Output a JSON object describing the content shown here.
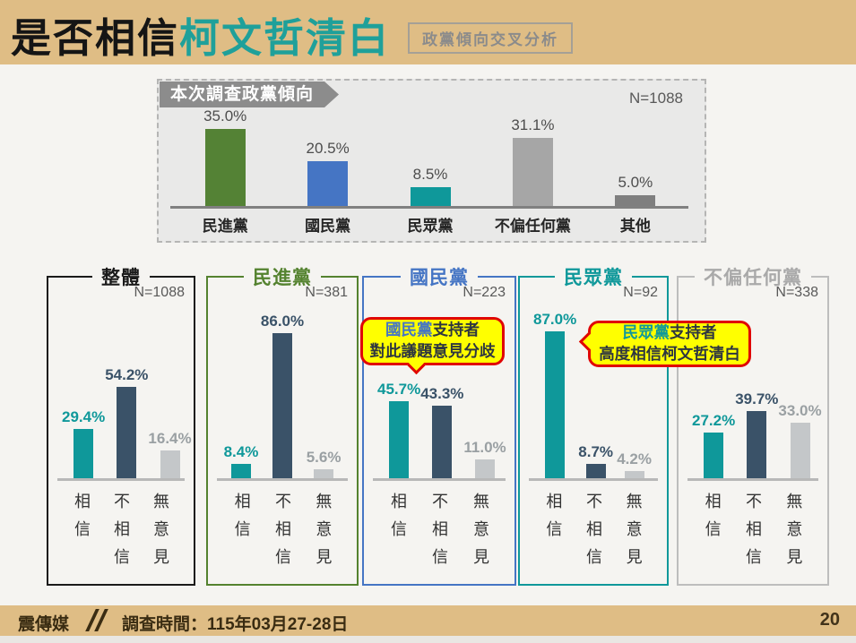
{
  "header": {
    "title_prefix": "是否相信",
    "title_highlight": "柯文哲清白",
    "title_highlight_color": "#1fa09a",
    "badge": "政黨傾向交叉分析"
  },
  "footer": {
    "brand": "震傳媒",
    "survey_time": "調查時間：115年03月27-28日",
    "page_number": "20"
  },
  "theme": {
    "band_tan": "#dfbd85",
    "content_bg": "#f5f4f1",
    "chart_bg": "#e9e9e8",
    "banner_gray": "#8c8c8c",
    "callout_yellow": "#ffff00",
    "callout_red": "#e00505"
  },
  "series_colors": {
    "bars": [
      "#0f989a",
      "#3a5268",
      "#c4c7c9"
    ],
    "labels": [
      "#0f989a",
      "#3a5268",
      "#9aa0a3"
    ]
  },
  "chart_data": [
    {
      "type": "bar",
      "title": "本次調查政黨傾向",
      "n_label": "N=1088",
      "categories": [
        "民進黨",
        "國民黨",
        "民眾黨",
        "不偏任何黨",
        "其他"
      ],
      "values": [
        35.0,
        20.5,
        8.5,
        31.1,
        5.0
      ],
      "value_labels": [
        "35.0%",
        "20.5%",
        "8.5%",
        "31.1%",
        "5.0%"
      ],
      "bar_colors": [
        "#548235",
        "#4575c4",
        "#0f989a",
        "#a6a6a6",
        "#7f7f7f"
      ],
      "ylim": [
        0,
        40
      ],
      "grid": false,
      "legend": "none"
    },
    {
      "type": "bar",
      "title": "整體",
      "title_color": "#1a1a1a",
      "border_color": "#1a1a1a",
      "n_label": "N=1088",
      "categories": [
        "相信",
        "不相信",
        "無意見"
      ],
      "values": [
        29.4,
        54.2,
        16.4
      ],
      "value_labels": [
        "29.4%",
        "54.2%",
        "16.4%"
      ],
      "ylim": [
        0,
        100
      ],
      "grid": false
    },
    {
      "type": "bar",
      "title": "民進黨",
      "title_color": "#54822f",
      "border_color": "#54822f",
      "n_label": "N=381",
      "categories": [
        "相信",
        "不相信",
        "無意見"
      ],
      "values": [
        8.4,
        86.0,
        5.6
      ],
      "value_labels": [
        "8.4%",
        "86.0%",
        "5.6%"
      ],
      "ylim": [
        0,
        100
      ],
      "grid": false
    },
    {
      "type": "bar",
      "title": "國民黨",
      "title_color": "#4575c4",
      "border_color": "#4575c4",
      "n_label": "N=223",
      "categories": [
        "相信",
        "不相信",
        "無意見"
      ],
      "values": [
        45.7,
        43.3,
        11.0
      ],
      "value_labels": [
        "45.7%",
        "43.3%",
        "11.0%"
      ],
      "ylim": [
        0,
        100
      ],
      "grid": false
    },
    {
      "type": "bar",
      "title": "民眾黨",
      "title_color": "#0f989a",
      "border_color": "#0f989a",
      "n_label": "N=92",
      "categories": [
        "相信",
        "不相信",
        "無意見"
      ],
      "values": [
        87.0,
        8.7,
        4.2
      ],
      "value_labels": [
        "87.0%",
        "8.7%",
        "4.2%"
      ],
      "ylim": [
        0,
        100
      ],
      "grid": false
    },
    {
      "type": "bar",
      "title": "不偏任何黨",
      "title_color": "#a9a9a9",
      "border_color": "#bdbdbd",
      "n_label": "N=338",
      "categories": [
        "相信",
        "不相信",
        "無意見"
      ],
      "values": [
        27.2,
        39.7,
        33.0
      ],
      "value_labels": [
        "27.2%",
        "39.7%",
        "33.0%"
      ],
      "ylim": [
        0,
        100
      ],
      "grid": false
    }
  ],
  "callouts": [
    {
      "party": "國民黨",
      "party_color": "#4575c4",
      "line1_rest": "支持者",
      "line2": "對此議題意見分歧"
    },
    {
      "party": "民眾黨",
      "party_color": "#0f989a",
      "line1_rest": "支持者",
      "line2": "高度相信柯文哲清白"
    }
  ]
}
